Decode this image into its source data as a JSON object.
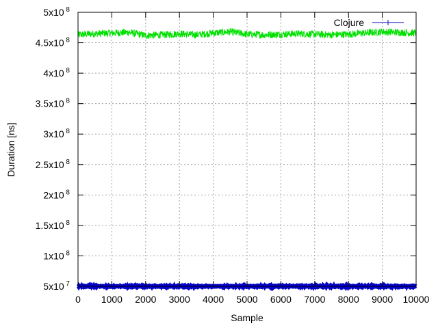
{
  "chart_data": {
    "type": "line",
    "xlabel": "Sample",
    "ylabel": "Duration [ns]",
    "xlim": [
      0,
      10000
    ],
    "ylim": [
      50000000,
      500000000
    ],
    "x_ticks": [
      {
        "value": 0,
        "label": "0"
      },
      {
        "value": 1000,
        "label": "1000"
      },
      {
        "value": 2000,
        "label": "2000"
      },
      {
        "value": 3000,
        "label": "3000"
      },
      {
        "value": 4000,
        "label": "4000"
      },
      {
        "value": 5000,
        "label": "5000"
      },
      {
        "value": 6000,
        "label": "6000"
      },
      {
        "value": 7000,
        "label": "7000"
      },
      {
        "value": 8000,
        "label": "8000"
      },
      {
        "value": 9000,
        "label": "9000"
      },
      {
        "value": 10000,
        "label": "10000"
      }
    ],
    "y_ticks": [
      {
        "value": 50000000,
        "mantissa": "5x10",
        "exp": "7"
      },
      {
        "value": 100000000,
        "mantissa": "1x10",
        "exp": "8"
      },
      {
        "value": 150000000,
        "mantissa": "1.5x10",
        "exp": "8"
      },
      {
        "value": 200000000,
        "mantissa": "2x10",
        "exp": "8"
      },
      {
        "value": 250000000,
        "mantissa": "2.5x10",
        "exp": "8"
      },
      {
        "value": 300000000,
        "mantissa": "3x10",
        "exp": "8"
      },
      {
        "value": 350000000,
        "mantissa": "3.5x10",
        "exp": "8"
      },
      {
        "value": 400000000,
        "mantissa": "4x10",
        "exp": "8"
      },
      {
        "value": 450000000,
        "mantissa": "4.5x10",
        "exp": "8"
      },
      {
        "value": 500000000,
        "mantissa": "5x10",
        "exp": "8"
      }
    ],
    "grid": true,
    "legend_position": "top-right",
    "series": [
      {
        "color": "#00e000",
        "x": [
          0,
          500,
          1000,
          1500,
          2000,
          2500,
          3000,
          3500,
          4000,
          4500,
          5000,
          5500,
          6000,
          6500,
          7000,
          7500,
          8000,
          8500,
          9000,
          9500,
          10000
        ],
        "y": [
          463000000,
          465000000,
          466000000,
          467000000,
          462000000,
          463000000,
          465000000,
          463000000,
          466000000,
          468000000,
          464000000,
          463000000,
          464000000,
          465000000,
          464000000,
          463000000,
          464000000,
          466000000,
          468000000,
          467000000,
          466000000
        ],
        "spread": 6000000
      },
      {
        "name": "Clojure",
        "color": "#0000c8",
        "x": [
          0,
          2500,
          5000,
          7500,
          10000
        ],
        "y": [
          50000000,
          50000000,
          50000000,
          50000000,
          50000000
        ],
        "spread": 500000
      }
    ]
  }
}
